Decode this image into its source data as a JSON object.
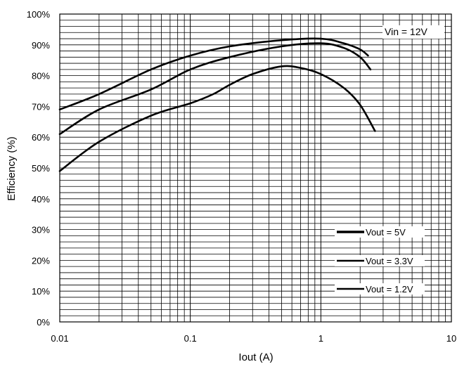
{
  "chart_data": {
    "type": "line",
    "title": "",
    "xlabel": "Iout (A)",
    "ylabel": "Efficiency (%)",
    "x_scale": "log",
    "xlim": [
      0.01,
      10
    ],
    "ylim": [
      0,
      100
    ],
    "x_ticks": [
      0.01,
      0.1,
      1,
      10
    ],
    "x_tick_labels": [
      "0.01",
      "0.1",
      "1",
      "10"
    ],
    "y_ticks": [
      0,
      10,
      20,
      30,
      40,
      50,
      60,
      70,
      80,
      90,
      100
    ],
    "y_tick_labels": [
      "0%",
      "10%",
      "20%",
      "30%",
      "40%",
      "50%",
      "60%",
      "70%",
      "80%",
      "90%",
      "100%"
    ],
    "y_minor_step": 2,
    "grid": true,
    "legend_position": "bottom-right",
    "line_color": "#000000",
    "annotation": "Vin = 12V",
    "series": [
      {
        "name": "Vout = 5V",
        "x": [
          0.01,
          0.02,
          0.05,
          0.1,
          0.2,
          0.5,
          1,
          1.5,
          2,
          2.3
        ],
        "y": [
          69,
          74,
          82,
          86.5,
          89.5,
          91.5,
          92,
          90.5,
          88.5,
          86.5
        ]
      },
      {
        "name": "Vout = 3.3V",
        "x": [
          0.01,
          0.02,
          0.05,
          0.1,
          0.2,
          0.5,
          1,
          1.5,
          2,
          2.4
        ],
        "y": [
          61,
          69,
          75.5,
          82,
          86,
          89.5,
          90.5,
          89,
          86,
          82
        ]
      },
      {
        "name": "Vout = 1.2V",
        "x": [
          0.01,
          0.02,
          0.05,
          0.1,
          0.15,
          0.2,
          0.3,
          0.5,
          0.7,
          1,
          1.5,
          2,
          2.6
        ],
        "y": [
          49,
          58.5,
          67,
          71,
          74,
          77,
          80.5,
          83,
          82.5,
          80.5,
          76,
          70.5,
          62
        ]
      }
    ]
  }
}
